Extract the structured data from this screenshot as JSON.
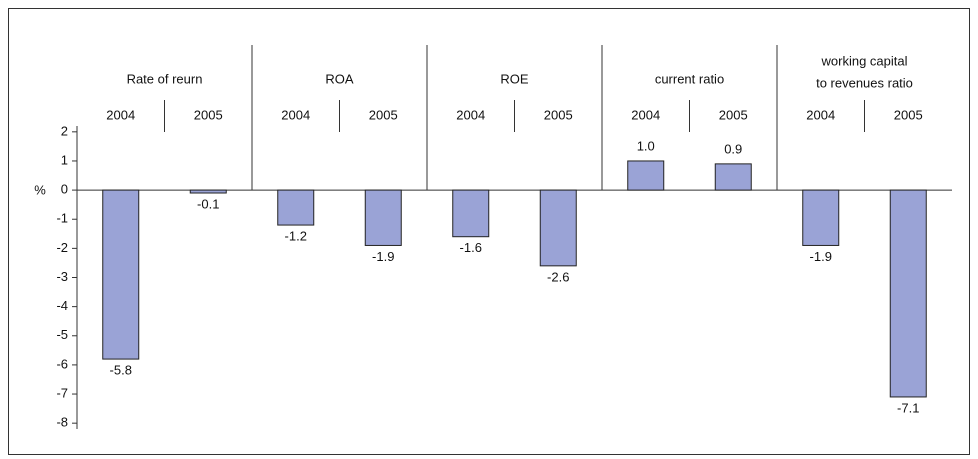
{
  "chart_data": {
    "type": "bar",
    "y_label": "%",
    "groups": [
      [
        "Rate of reurn"
      ],
      [
        "ROA"
      ],
      [
        "ROE"
      ],
      [
        "current ratio"
      ],
      [
        "working capital",
        "to revenues ratio"
      ]
    ],
    "categories": [
      "2004",
      "2005",
      "2004",
      "2005",
      "2004",
      "2005",
      "2004",
      "2005",
      "2004",
      "2005"
    ],
    "values": [
      -5.8,
      -0.1,
      -1.2,
      -1.9,
      -1.6,
      -2.6,
      1.0,
      0.9,
      -1.9,
      -7.1
    ],
    "value_labels": [
      "-5.8",
      "-0.1",
      "-1.2",
      "-1.9",
      "-1.6",
      "-2.6",
      "1.0",
      "0.9",
      "-1.9",
      "-7.1"
    ],
    "color": "#9aa3d6",
    "ylim": [
      -8.2,
      2.2
    ],
    "yticks": [
      2,
      1,
      0,
      -1,
      -2,
      -3,
      -4,
      -5,
      -6,
      -7,
      -8
    ]
  }
}
